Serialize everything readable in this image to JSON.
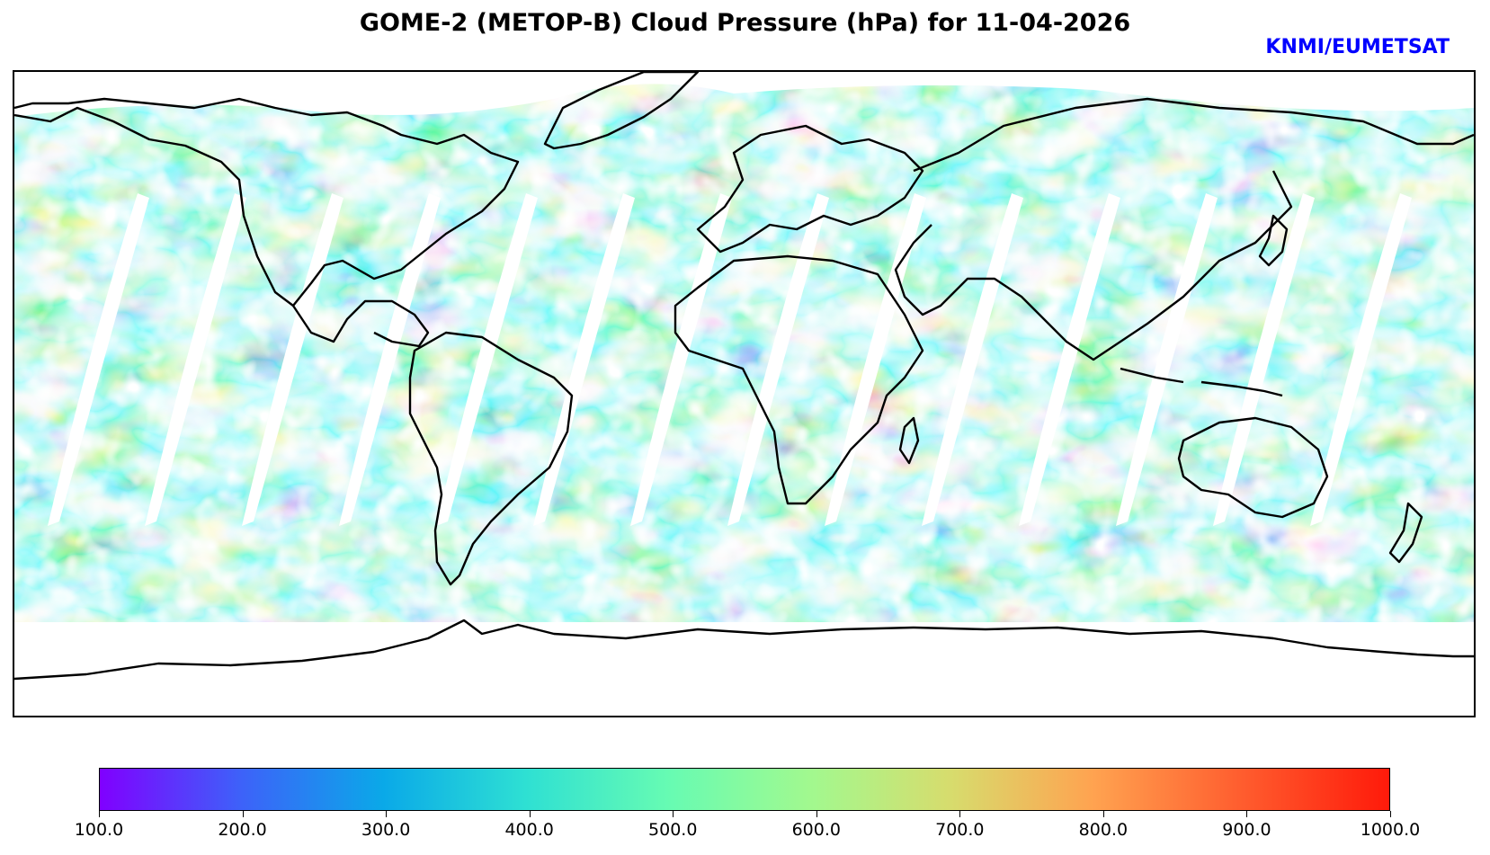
{
  "title": "GOME-2 (METOP-B) Cloud Pressure (hPa) for 11-04-2026",
  "credit": "KNMI/EUMETSAT",
  "colorbar": {
    "min": 100.0,
    "max": 1000.0,
    "ticks": [
      "100.0",
      "200.0",
      "300.0",
      "400.0",
      "500.0",
      "600.0",
      "700.0",
      "800.0",
      "900.0",
      "1000.0"
    ],
    "colors": [
      "#8000ff",
      "#3d62f9",
      "#0aa9e8",
      "#2ee0d3",
      "#66fbb3",
      "#a1f98f",
      "#d7dc6d",
      "#ffa350",
      "#ff6030",
      "#ff1a0a"
    ]
  },
  "map": {
    "projection": "equirectangular",
    "orbit_gap_count": 14
  }
}
